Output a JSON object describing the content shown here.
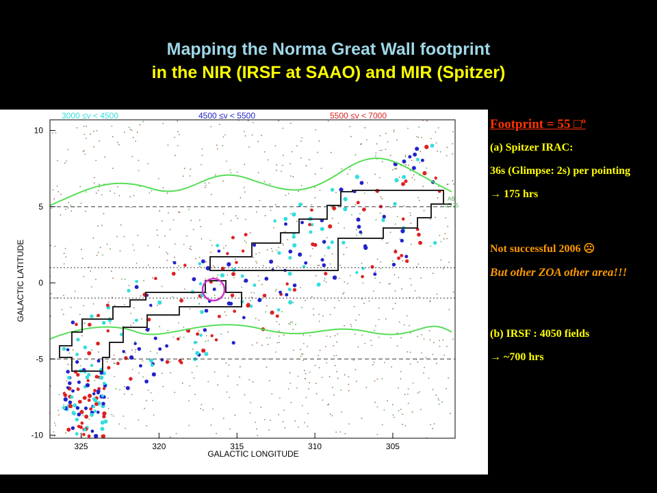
{
  "header": {
    "title_line1": "Mapping the Norma Great Wall footprint",
    "title_line2": "in the NIR (IRSF at SAAO) and MIR (Spitzer)"
  },
  "figure": {
    "legend": [
      "3000 ≤v < 4500",
      "4500 ≤v < 5500",
      "5500 ≤v < 7000"
    ],
    "x_label": "GALACTIC LONGITUDE",
    "y_label": "GALACTIC LATITUDE",
    "xlim": [
      327,
      301
    ],
    "ylim": [
      -10.2,
      10.7
    ],
    "xticks": [
      325,
      320,
      315,
      310,
      305
    ],
    "yticks": [
      10,
      5,
      0,
      -5,
      -10
    ],
    "extinction_label": "AB",
    "extinction_value": "0.=25"
  },
  "notes": {
    "footprint": "Footprint = 55 □º",
    "spitzer": "(a) Spitzer IRAC:",
    "exposure": "36s (Glimpse: 2s) per pointing",
    "spitzer_time": "→ 175 hrs",
    "status": "Not successful 2006 ☹",
    "other": "But other ZOA other area!!!",
    "irsf": "(b) IRSF : 4050 fields",
    "irsf_time": "→ ~700 hrs"
  }
}
